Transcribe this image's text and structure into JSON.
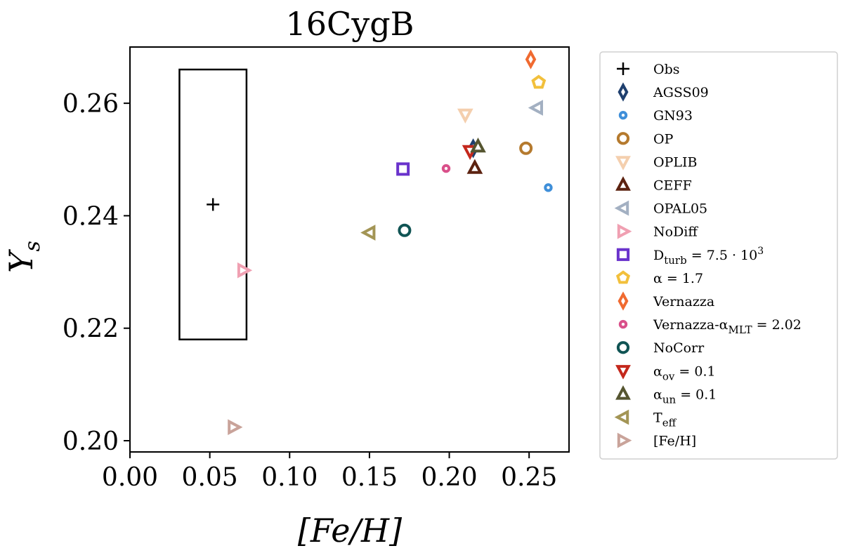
{
  "chart_data": {
    "type": "scatter",
    "title": "16CygB",
    "xlabel": "[Fe/H]",
    "ylabel": "Y",
    "ylabel_sub": "s",
    "xlim": [
      0.0,
      0.275
    ],
    "ylim": [
      0.198,
      0.27
    ],
    "xticks": [
      0.0,
      0.05,
      0.1,
      0.15,
      0.2,
      0.25
    ],
    "xtick_labels": [
      "0.00",
      "0.05",
      "0.10",
      "0.15",
      "0.20",
      "0.25"
    ],
    "yticks": [
      0.2,
      0.22,
      0.24,
      0.26
    ],
    "ytick_labels": [
      "0.20",
      "0.22",
      "0.24",
      "0.26"
    ],
    "grid": false,
    "legend_position": "outside-right",
    "observation": {
      "name": "Obs",
      "x": 0.052,
      "y": 0.242,
      "x_range": [
        0.031,
        0.073
      ],
      "y_range": [
        0.218,
        0.266
      ]
    },
    "series": [
      {
        "name": "Obs",
        "legend": {
          "text": "Obs"
        },
        "marker": "plus",
        "color": "#000000",
        "points": []
      },
      {
        "name": "AGSS09",
        "legend": {
          "text": "AGSS09"
        },
        "marker": "thin_diamond",
        "color": "#1f3f6e",
        "points": [
          {
            "x": 0.215,
            "y": 0.252
          }
        ]
      },
      {
        "name": "GN93",
        "legend": {
          "text": "GN93"
        },
        "marker": "dot",
        "color": "#3f8fd9",
        "points": [
          {
            "x": 0.262,
            "y": 0.245
          }
        ]
      },
      {
        "name": "OP",
        "legend": {
          "text": "OP"
        },
        "marker": "circle",
        "color": "#b57a2e",
        "points": [
          {
            "x": 0.248,
            "y": 0.252
          }
        ]
      },
      {
        "name": "OPLIB",
        "legend": {
          "text": "OPLIB"
        },
        "marker": "triangle_down",
        "color": "#f4cfae",
        "points": [
          {
            "x": 0.21,
            "y": 0.258
          }
        ]
      },
      {
        "name": "CEFF",
        "legend": {
          "text": "CEFF"
        },
        "marker": "triangle_up",
        "color": "#5c2210",
        "points": [
          {
            "x": 0.216,
            "y": 0.2485
          }
        ]
      },
      {
        "name": "OPAL05",
        "legend": {
          "text": "OPAL05"
        },
        "marker": "triangle_left",
        "color": "#a3b0c2",
        "points": [
          {
            "x": 0.255,
            "y": 0.2592
          }
        ]
      },
      {
        "name": "NoDiff",
        "legend": {
          "text": "NoDiff"
        },
        "marker": "triangle_right",
        "color": "#f0a0b2",
        "points": [
          {
            "x": 0.071,
            "y": 0.2303
          }
        ]
      },
      {
        "name": "Dturb",
        "legend": {
          "text": "D",
          "sub": "turb",
          "tail": " = 7.5 · 10",
          "sup": "3"
        },
        "marker": "square",
        "color": "#6a33cc",
        "points": [
          {
            "x": 0.171,
            "y": 0.2483
          }
        ]
      },
      {
        "name": "alpha",
        "legend": {
          "text": "α = 1.7"
        },
        "marker": "pentagon",
        "color": "#f2c03c",
        "points": [
          {
            "x": 0.256,
            "y": 0.2637
          }
        ]
      },
      {
        "name": "Vernazza",
        "legend": {
          "text": "Vernazza"
        },
        "marker": "thin_diamond",
        "color": "#f06a30",
        "points": [
          {
            "x": 0.251,
            "y": 0.2678
          }
        ]
      },
      {
        "name": "Vernazza-alphaMLT",
        "legend": {
          "text": "Vernazza-α",
          "sub": "MLT",
          "tail": " = 2.02"
        },
        "marker": "dot",
        "color": "#d9508a",
        "points": [
          {
            "x": 0.198,
            "y": 0.2484
          }
        ]
      },
      {
        "name": "NoCorr",
        "legend": {
          "text": "NoCorr"
        },
        "marker": "circle",
        "color": "#105454",
        "points": [
          {
            "x": 0.172,
            "y": 0.2374
          }
        ]
      },
      {
        "name": "alpha_ov",
        "legend": {
          "text": "α",
          "sub": "ov",
          "tail": " = 0.1"
        },
        "marker": "triangle_down",
        "color": "#c4281c",
        "points": [
          {
            "x": 0.213,
            "y": 0.2515
          }
        ]
      },
      {
        "name": "alpha_un",
        "legend": {
          "text": "α",
          "sub": "un",
          "tail": " = 0.1"
        },
        "marker": "triangle_up",
        "color": "#555530",
        "points": [
          {
            "x": 0.218,
            "y": 0.2523
          }
        ]
      },
      {
        "name": "Teff",
        "legend": {
          "text": "T",
          "sub": "eff"
        },
        "marker": "triangle_left",
        "color": "#a39555",
        "points": [
          {
            "x": 0.15,
            "y": 0.237
          }
        ]
      },
      {
        "name": "FeH",
        "legend": {
          "text": "[Fe/H]"
        },
        "marker": "triangle_right",
        "color": "#c9a39a",
        "points": [
          {
            "x": 0.065,
            "y": 0.2024
          }
        ]
      }
    ]
  }
}
